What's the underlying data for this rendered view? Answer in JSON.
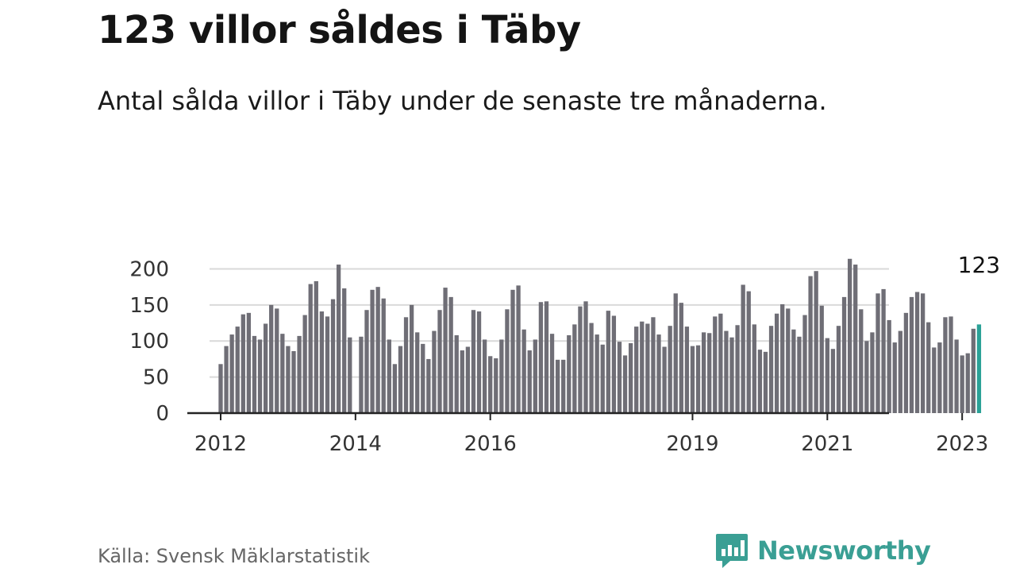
{
  "header": {
    "title": "123 villor såldes i Täby",
    "subtitle": "Antal sålda villor i Täby under de senaste tre månaderna."
  },
  "footer": {
    "source": "Källa: Svensk Mäklarstatistik",
    "brand": "Newsworthy",
    "brand_icon": "bar-chart-speech-bubble-icon"
  },
  "colors": {
    "bar": "#6f6e76",
    "highlight": "#2aa197",
    "grid": "#d9d9d9",
    "axis": "#222222",
    "brand": "#3a9f94"
  },
  "chart_data": {
    "type": "bar",
    "x_start": "2012-01",
    "x_end": "2023-03",
    "interval": "month",
    "values": [
      68,
      93,
      109,
      120,
      137,
      139,
      107,
      102,
      124,
      150,
      145,
      110,
      93,
      86,
      107,
      136,
      179,
      183,
      141,
      134,
      158,
      206,
      173,
      105,
      null,
      106,
      143,
      171,
      175,
      159,
      102,
      68,
      93,
      133,
      150,
      112,
      96,
      75,
      114,
      143,
      174,
      161,
      108,
      87,
      92,
      143,
      141,
      102,
      79,
      76,
      102,
      144,
      171,
      177,
      116,
      87,
      102,
      154,
      155,
      110,
      74,
      74,
      108,
      123,
      148,
      155,
      125,
      109,
      95,
      142,
      135,
      99,
      80,
      97,
      120,
      127,
      124,
      133,
      109,
      92,
      121,
      166,
      153,
      120,
      93,
      94,
      112,
      111,
      134,
      138,
      114,
      105,
      122,
      178,
      169,
      123,
      88,
      85,
      121,
      138,
      151,
      145,
      116,
      106,
      136,
      190,
      197,
      149,
      104,
      89,
      121,
      161,
      214,
      206,
      144,
      100,
      112,
      166,
      172,
      129,
      98,
      114,
      139,
      161,
      168,
      166,
      126,
      91,
      98,
      133,
      134,
      102,
      80,
      83,
      117,
      123
    ],
    "highlight_label": "123",
    "yticks": [
      0,
      50,
      100,
      150,
      200
    ],
    "ylim": [
      0,
      215
    ],
    "xticks": [
      "2012",
      "2014",
      "2016",
      "2019",
      "2021",
      "2023"
    ],
    "grid": true,
    "title": "123 villor såldes i Täby",
    "subtitle": "Antal sålda villor i Täby under de senaste tre månaderna."
  }
}
